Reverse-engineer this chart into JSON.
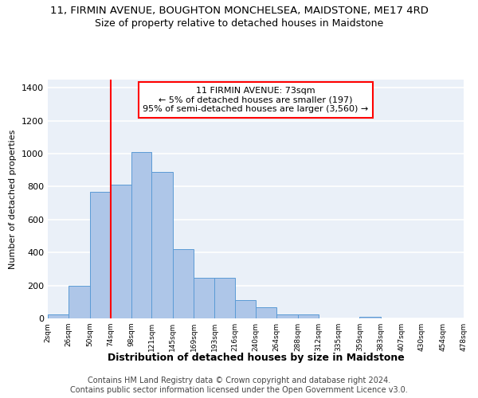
{
  "title1": "11, FIRMIN AVENUE, BOUGHTON MONCHELSEA, MAIDSTONE, ME17 4RD",
  "title2": "Size of property relative to detached houses in Maidstone",
  "xlabel": "Distribution of detached houses by size in Maidstone",
  "ylabel": "Number of detached properties",
  "footnote": "Contains HM Land Registry data © Crown copyright and database right 2024.\nContains public sector information licensed under the Open Government Licence v3.0.",
  "bin_edges": [
    2,
    26,
    50,
    74,
    98,
    121,
    145,
    169,
    193,
    216,
    240,
    264,
    288,
    312,
    335,
    359,
    383,
    407,
    430,
    454,
    478
  ],
  "bar_heights": [
    25,
    200,
    770,
    810,
    1010,
    890,
    420,
    245,
    245,
    110,
    70,
    25,
    25,
    0,
    0,
    10,
    0,
    0,
    0,
    0
  ],
  "bar_color": "#aec6e8",
  "bar_edge_color": "#5b9bd5",
  "bg_color": "#eaf0f8",
  "grid_color": "#ffffff",
  "red_line_x": 74,
  "annotation_text_line1": "11 FIRMIN AVENUE: 73sqm",
  "annotation_text_line2": "← 5% of detached houses are smaller (197)",
  "annotation_text_line3": "95% of semi-detached houses are larger (3,560) →",
  "ylim": [
    0,
    1450
  ],
  "yticks": [
    0,
    200,
    400,
    600,
    800,
    1000,
    1200,
    1400
  ],
  "title1_fontsize": 9.5,
  "title2_fontsize": 9,
  "xlabel_fontsize": 9,
  "ylabel_fontsize": 8,
  "footnote_fontsize": 7
}
